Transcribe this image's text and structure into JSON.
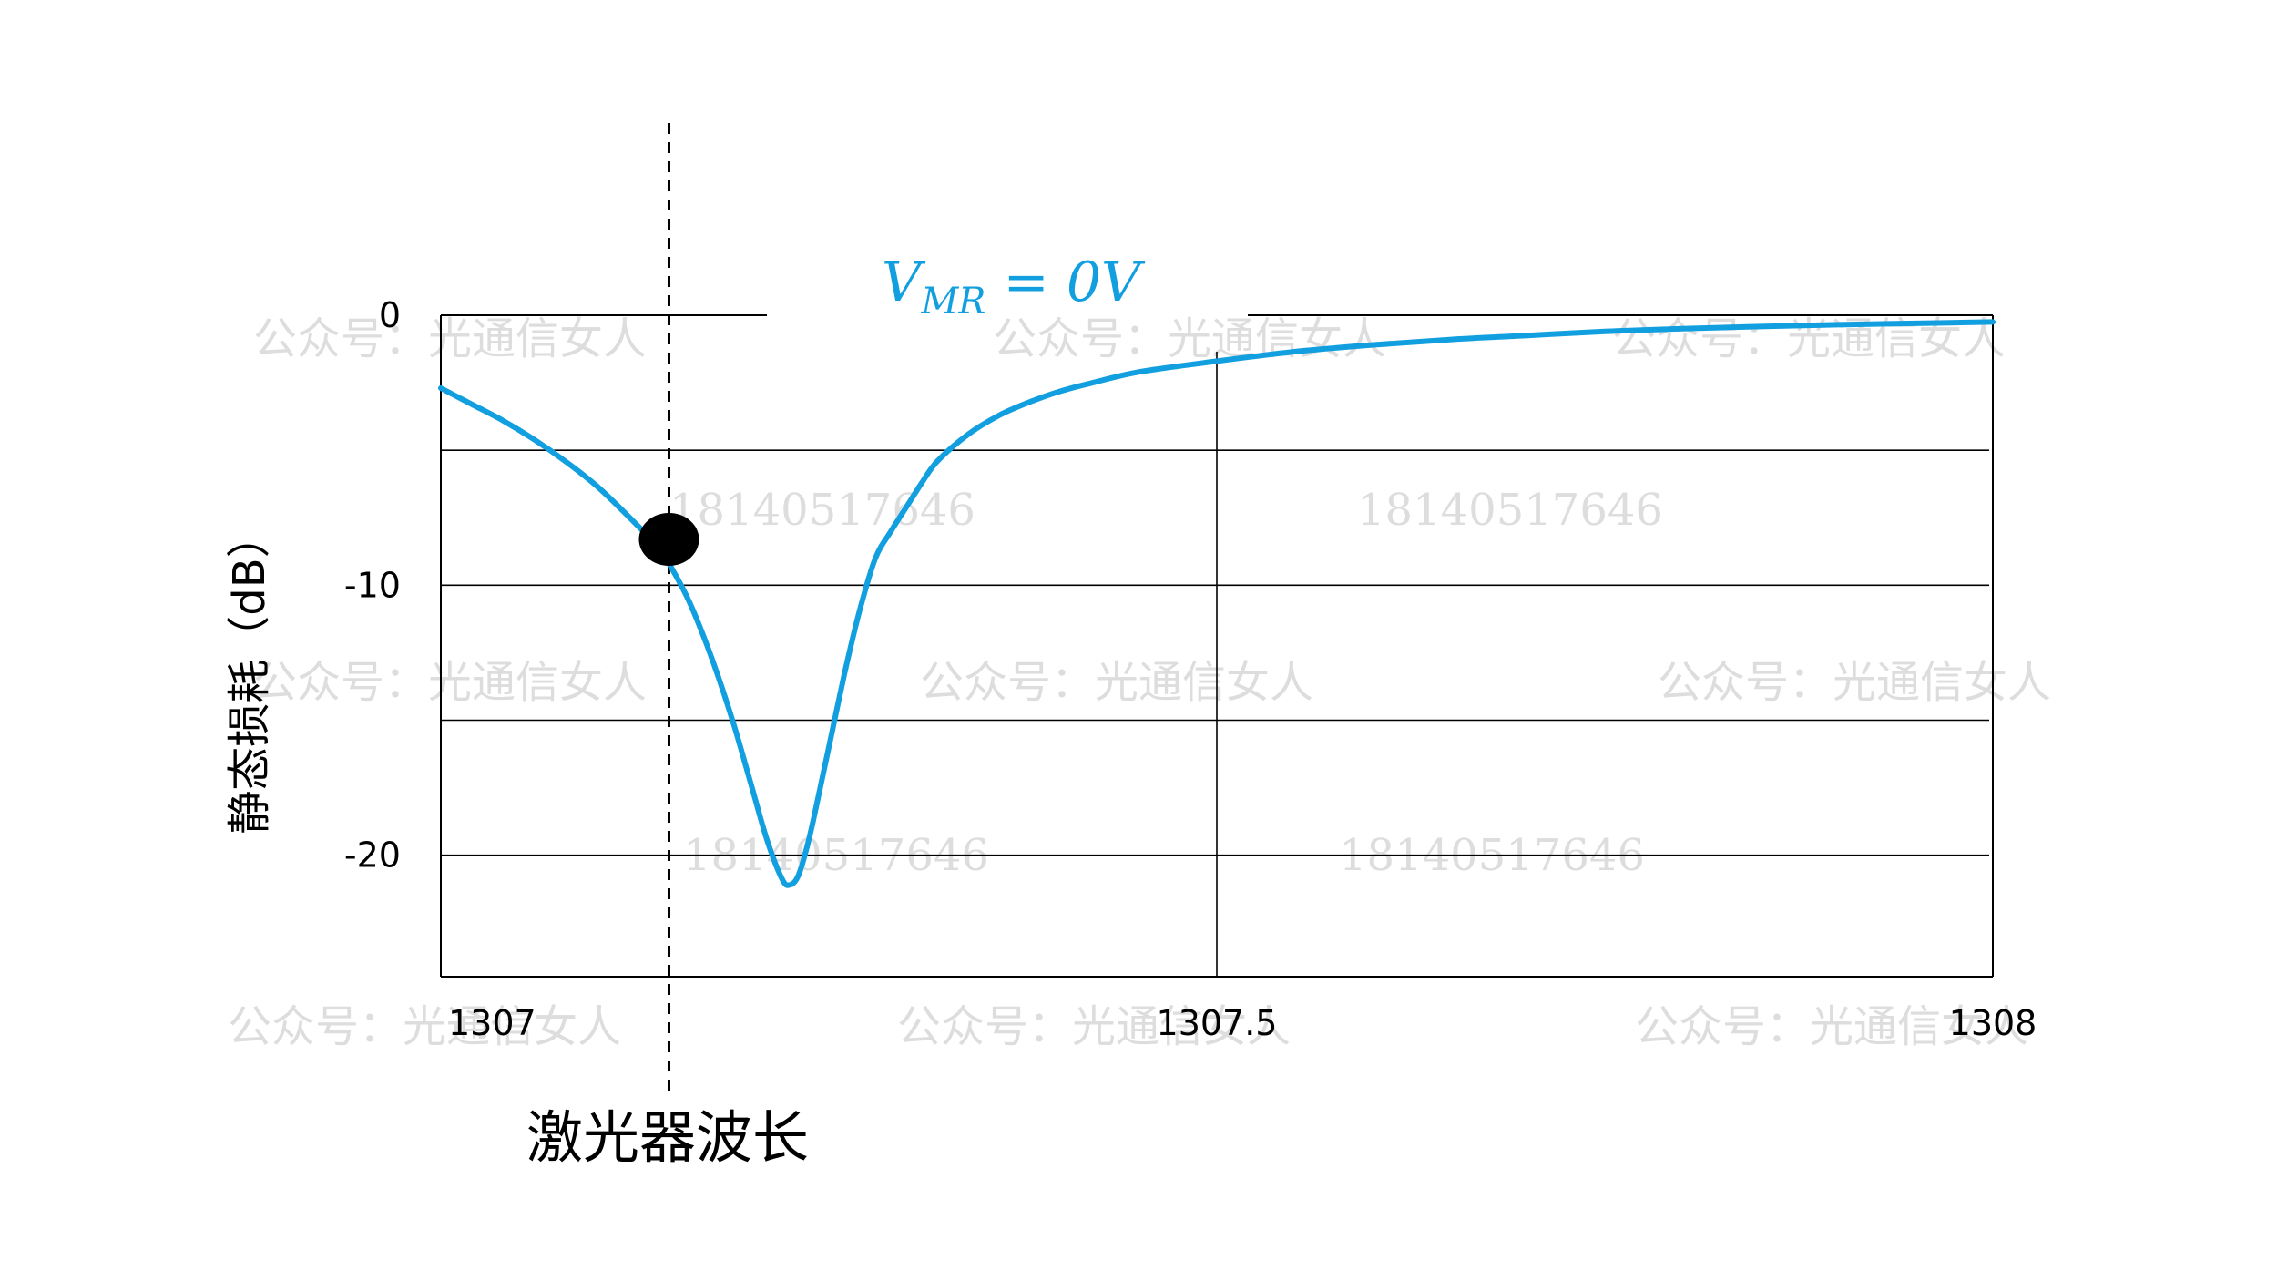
{
  "chart_data": {
    "type": "line",
    "xlabel": "",
    "ylabel": "静态损耗（dB）",
    "xlim": [
      1307,
      1308
    ],
    "ylim": [
      -24.5,
      0
    ],
    "x_ticks": [
      1307,
      1307.5,
      1308
    ],
    "x_tick_labels": [
      "1307",
      "1307.5",
      "1308"
    ],
    "y_ticks": [
      0,
      -10,
      -20
    ],
    "y_tick_labels": [
      "0",
      "-10",
      "-20"
    ],
    "y_gridlines": [
      0,
      -5,
      -10,
      -15,
      -20
    ],
    "x_gridlines": [
      1307.5
    ],
    "curve_label": {
      "main": "V",
      "sub": "MR",
      "rest": " = 0V"
    },
    "series": [
      {
        "color": "#119fdf",
        "x": [
          1307.0,
          1307.02,
          1307.04,
          1307.06,
          1307.08,
          1307.1,
          1307.12,
          1307.14,
          1307.15,
          1307.16,
          1307.17,
          1307.18,
          1307.19,
          1307.2,
          1307.21,
          1307.22,
          1307.225,
          1307.23,
          1307.235,
          1307.24,
          1307.25,
          1307.26,
          1307.27,
          1307.28,
          1307.29,
          1307.3,
          1307.31,
          1307.32,
          1307.34,
          1307.36,
          1307.38,
          1307.4,
          1307.42,
          1307.45,
          1307.5,
          1307.55,
          1307.6,
          1307.65,
          1307.7,
          1307.75,
          1307.8,
          1307.85,
          1307.9,
          1307.95,
          1308.0
        ],
        "y": [
          -2.7,
          -3.3,
          -3.9,
          -4.6,
          -5.4,
          -6.3,
          -7.4,
          -8.6,
          -9.5,
          -10.6,
          -12.0,
          -13.6,
          -15.4,
          -17.4,
          -19.4,
          -20.9,
          -21.1,
          -20.8,
          -19.9,
          -18.7,
          -16.0,
          -13.3,
          -10.9,
          -9.0,
          -8.0,
          -7.1,
          -6.2,
          -5.4,
          -4.4,
          -3.7,
          -3.2,
          -2.8,
          -2.5,
          -2.1,
          -1.7,
          -1.35,
          -1.1,
          -0.9,
          -0.75,
          -0.6,
          -0.5,
          -0.42,
          -0.35,
          -0.3,
          -0.25
        ]
      }
    ],
    "marker": {
      "label": "激光器波长",
      "x": 1307.147,
      "y": -8.3
    }
  },
  "watermarks": {
    "text_cn": "公众号：光通信女人",
    "text_num": "18140517646"
  }
}
